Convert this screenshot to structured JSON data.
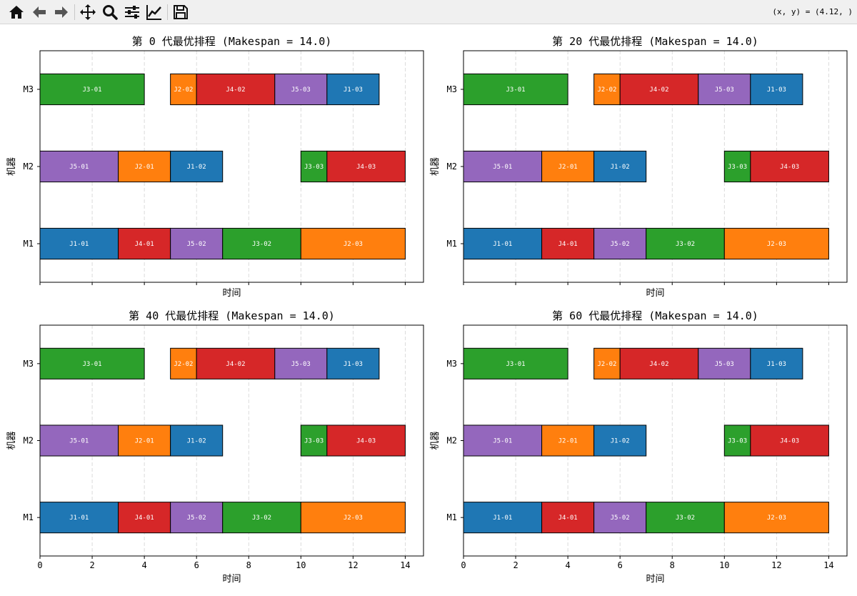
{
  "toolbar": {
    "buttons": [
      {
        "name": "home-button",
        "icon": "home-icon"
      },
      {
        "name": "back-button",
        "icon": "arrow-left-icon"
      },
      {
        "name": "forward-button",
        "icon": "arrow-right-icon"
      },
      {
        "name": "pan-button",
        "icon": "move-icon"
      },
      {
        "name": "zoom-button",
        "icon": "magnifier-icon"
      },
      {
        "name": "configure-subplots-button",
        "icon": "sliders-icon"
      },
      {
        "name": "edit-axes-button",
        "icon": "line-chart-icon"
      },
      {
        "name": "save-button",
        "icon": "floppy-disk-icon"
      }
    ],
    "coordinates": "(x, y) = (4.12, )"
  },
  "colors": {
    "J1": "#1f77b4",
    "J2": "#ff7f0e",
    "J3": "#2ca02c",
    "J4": "#d62728",
    "J5": "#9467bd"
  },
  "chart_data": [
    {
      "type": "gantt",
      "title": "第 0 代最优排程 (Makespan = 14.0)",
      "xlabel": "时间",
      "ylabel": "机器",
      "machines": [
        "M1",
        "M2",
        "M3"
      ],
      "xlim": [
        0,
        14.7
      ],
      "xticks": [
        0,
        2,
        4,
        6,
        8,
        10,
        12,
        14
      ],
      "grid": "x-dashed",
      "tasks": [
        {
          "machine": "M1",
          "label": "J1-01",
          "job": "J1",
          "start": 0,
          "end": 3
        },
        {
          "machine": "M1",
          "label": "J4-01",
          "job": "J4",
          "start": 3,
          "end": 5
        },
        {
          "machine": "M1",
          "label": "J5-02",
          "job": "J5",
          "start": 5,
          "end": 7
        },
        {
          "machine": "M1",
          "label": "J3-02",
          "job": "J3",
          "start": 7,
          "end": 10
        },
        {
          "machine": "M1",
          "label": "J2-03",
          "job": "J2",
          "start": 10,
          "end": 14
        },
        {
          "machine": "M2",
          "label": "J5-01",
          "job": "J5",
          "start": 0,
          "end": 3
        },
        {
          "machine": "M2",
          "label": "J2-01",
          "job": "J2",
          "start": 3,
          "end": 5
        },
        {
          "machine": "M2",
          "label": "J1-02",
          "job": "J1",
          "start": 5,
          "end": 7
        },
        {
          "machine": "M2",
          "label": "J3-03",
          "job": "J3",
          "start": 10,
          "end": 11
        },
        {
          "machine": "M2",
          "label": "J4-03",
          "job": "J4",
          "start": 11,
          "end": 14
        },
        {
          "machine": "M3",
          "label": "J3-01",
          "job": "J3",
          "start": 0,
          "end": 4
        },
        {
          "machine": "M3",
          "label": "J2-02",
          "job": "J2",
          "start": 5,
          "end": 6
        },
        {
          "machine": "M3",
          "label": "J4-02",
          "job": "J4",
          "start": 6,
          "end": 9
        },
        {
          "machine": "M3",
          "label": "J5-03",
          "job": "J5",
          "start": 9,
          "end": 11
        },
        {
          "machine": "M3",
          "label": "J1-03",
          "job": "J1",
          "start": 11,
          "end": 13
        }
      ]
    },
    {
      "type": "gantt",
      "title": "第 20 代最优排程 (Makespan = 14.0)",
      "xlabel": "时间",
      "ylabel": "机器",
      "machines": [
        "M1",
        "M2",
        "M3"
      ],
      "xlim": [
        0,
        14.7
      ],
      "xticks": [
        0,
        2,
        4,
        6,
        8,
        10,
        12,
        14
      ],
      "grid": "x-dashed",
      "tasks": [
        {
          "machine": "M1",
          "label": "J1-01",
          "job": "J1",
          "start": 0,
          "end": 3
        },
        {
          "machine": "M1",
          "label": "J4-01",
          "job": "J4",
          "start": 3,
          "end": 5
        },
        {
          "machine": "M1",
          "label": "J5-02",
          "job": "J5",
          "start": 5,
          "end": 7
        },
        {
          "machine": "M1",
          "label": "J3-02",
          "job": "J3",
          "start": 7,
          "end": 10
        },
        {
          "machine": "M1",
          "label": "J2-03",
          "job": "J2",
          "start": 10,
          "end": 14
        },
        {
          "machine": "M2",
          "label": "J5-01",
          "job": "J5",
          "start": 0,
          "end": 3
        },
        {
          "machine": "M2",
          "label": "J2-01",
          "job": "J2",
          "start": 3,
          "end": 5
        },
        {
          "machine": "M2",
          "label": "J1-02",
          "job": "J1",
          "start": 5,
          "end": 7
        },
        {
          "machine": "M2",
          "label": "J3-03",
          "job": "J3",
          "start": 10,
          "end": 11
        },
        {
          "machine": "M2",
          "label": "J4-03",
          "job": "J4",
          "start": 11,
          "end": 14
        },
        {
          "machine": "M3",
          "label": "J3-01",
          "job": "J3",
          "start": 0,
          "end": 4
        },
        {
          "machine": "M3",
          "label": "J2-02",
          "job": "J2",
          "start": 5,
          "end": 6
        },
        {
          "machine": "M3",
          "label": "J4-02",
          "job": "J4",
          "start": 6,
          "end": 9
        },
        {
          "machine": "M3",
          "label": "J5-03",
          "job": "J5",
          "start": 9,
          "end": 11
        },
        {
          "machine": "M3",
          "label": "J1-03",
          "job": "J1",
          "start": 11,
          "end": 13
        }
      ]
    },
    {
      "type": "gantt",
      "title": "第 40 代最优排程 (Makespan = 14.0)",
      "xlabel": "时间",
      "ylabel": "机器",
      "machines": [
        "M1",
        "M2",
        "M3"
      ],
      "xlim": [
        0,
        14.7
      ],
      "xticks": [
        0,
        2,
        4,
        6,
        8,
        10,
        12,
        14
      ],
      "grid": "x-dashed",
      "tasks": [
        {
          "machine": "M1",
          "label": "J1-01",
          "job": "J1",
          "start": 0,
          "end": 3
        },
        {
          "machine": "M1",
          "label": "J4-01",
          "job": "J4",
          "start": 3,
          "end": 5
        },
        {
          "machine": "M1",
          "label": "J5-02",
          "job": "J5",
          "start": 5,
          "end": 7
        },
        {
          "machine": "M1",
          "label": "J3-02",
          "job": "J3",
          "start": 7,
          "end": 10
        },
        {
          "machine": "M1",
          "label": "J2-03",
          "job": "J2",
          "start": 10,
          "end": 14
        },
        {
          "machine": "M2",
          "label": "J5-01",
          "job": "J5",
          "start": 0,
          "end": 3
        },
        {
          "machine": "M2",
          "label": "J2-01",
          "job": "J2",
          "start": 3,
          "end": 5
        },
        {
          "machine": "M2",
          "label": "J1-02",
          "job": "J1",
          "start": 5,
          "end": 7
        },
        {
          "machine": "M2",
          "label": "J3-03",
          "job": "J3",
          "start": 10,
          "end": 11
        },
        {
          "machine": "M2",
          "label": "J4-03",
          "job": "J4",
          "start": 11,
          "end": 14
        },
        {
          "machine": "M3",
          "label": "J3-01",
          "job": "J3",
          "start": 0,
          "end": 4
        },
        {
          "machine": "M3",
          "label": "J2-02",
          "job": "J2",
          "start": 5,
          "end": 6
        },
        {
          "machine": "M3",
          "label": "J4-02",
          "job": "J4",
          "start": 6,
          "end": 9
        },
        {
          "machine": "M3",
          "label": "J5-03",
          "job": "J5",
          "start": 9,
          "end": 11
        },
        {
          "machine": "M3",
          "label": "J1-03",
          "job": "J1",
          "start": 11,
          "end": 13
        }
      ]
    },
    {
      "type": "gantt",
      "title": "第 60 代最优排程 (Makespan = 14.0)",
      "xlabel": "时间",
      "ylabel": "机器",
      "machines": [
        "M1",
        "M2",
        "M3"
      ],
      "xlim": [
        0,
        14.7
      ],
      "xticks": [
        0,
        2,
        4,
        6,
        8,
        10,
        12,
        14
      ],
      "grid": "x-dashed",
      "tasks": [
        {
          "machine": "M1",
          "label": "J1-01",
          "job": "J1",
          "start": 0,
          "end": 3
        },
        {
          "machine": "M1",
          "label": "J4-01",
          "job": "J4",
          "start": 3,
          "end": 5
        },
        {
          "machine": "M1",
          "label": "J5-02",
          "job": "J5",
          "start": 5,
          "end": 7
        },
        {
          "machine": "M1",
          "label": "J3-02",
          "job": "J3",
          "start": 7,
          "end": 10
        },
        {
          "machine": "M1",
          "label": "J2-03",
          "job": "J2",
          "start": 10,
          "end": 14
        },
        {
          "machine": "M2",
          "label": "J5-01",
          "job": "J5",
          "start": 0,
          "end": 3
        },
        {
          "machine": "M2",
          "label": "J2-01",
          "job": "J2",
          "start": 3,
          "end": 5
        },
        {
          "machine": "M2",
          "label": "J1-02",
          "job": "J1",
          "start": 5,
          "end": 7
        },
        {
          "machine": "M2",
          "label": "J3-03",
          "job": "J3",
          "start": 10,
          "end": 11
        },
        {
          "machine": "M2",
          "label": "J4-03",
          "job": "J4",
          "start": 11,
          "end": 14
        },
        {
          "machine": "M3",
          "label": "J3-01",
          "job": "J3",
          "start": 0,
          "end": 4
        },
        {
          "machine": "M3",
          "label": "J2-02",
          "job": "J2",
          "start": 5,
          "end": 6
        },
        {
          "machine": "M3",
          "label": "J4-02",
          "job": "J4",
          "start": 6,
          "end": 9
        },
        {
          "machine": "M3",
          "label": "J5-03",
          "job": "J5",
          "start": 9,
          "end": 11
        },
        {
          "machine": "M3",
          "label": "J1-03",
          "job": "J1",
          "start": 11,
          "end": 13
        }
      ]
    }
  ]
}
